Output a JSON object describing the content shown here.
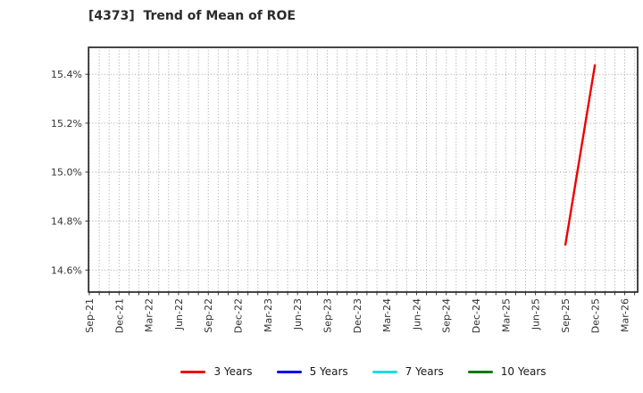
{
  "colors": {
    "background": "#ffffff",
    "axis": "#262626",
    "tick_text": "#333333",
    "grid": "#9a9a9a",
    "title_text": "#2b2b2b"
  },
  "chart_data": {
    "type": "line",
    "title": "[4373]  Trend of Mean of ROE",
    "x_axis": {
      "tick_labels": [
        "Sep-21",
        "Dec-21",
        "Mar-22",
        "Jun-22",
        "Sep-22",
        "Dec-22",
        "Mar-23",
        "Jun-23",
        "Sep-23",
        "Dec-23",
        "Mar-24",
        "Jun-24",
        "Sep-24",
        "Dec-24",
        "Mar-25",
        "Jun-25",
        "Sep-25",
        "Dec-25",
        "Mar-26"
      ],
      "months_between_labeled_ticks": 3,
      "minor_gridline_every_months": 1,
      "span_months": 55.3,
      "label_rotation_deg": 90
    },
    "y_axis": {
      "tick_values": [
        14.6,
        14.8,
        15.0,
        15.2,
        15.4
      ],
      "tick_labels": [
        "14.6%",
        "14.8%",
        "15.0%",
        "15.2%",
        "15.4%"
      ],
      "ylim": [
        14.51,
        15.51
      ],
      "unit": "%"
    },
    "grid": {
      "style": "dotted",
      "vertical": "monthly",
      "horizontal": "every 0.2%"
    },
    "series": [
      {
        "name": "3 Years",
        "color": "#ee0000",
        "points": [
          {
            "x_label": "Sep-25",
            "month": 48,
            "value": 14.7
          },
          {
            "x_label": "Dec-25",
            "month": 51,
            "value": 15.44
          }
        ]
      },
      {
        "name": "5 Years",
        "color": "#0000ee",
        "points": []
      },
      {
        "name": "7 Years",
        "color": "#1edde4",
        "points": []
      },
      {
        "name": "10 Years",
        "color": "#0b7c0b",
        "points": []
      }
    ],
    "legend_position": "bottom"
  }
}
